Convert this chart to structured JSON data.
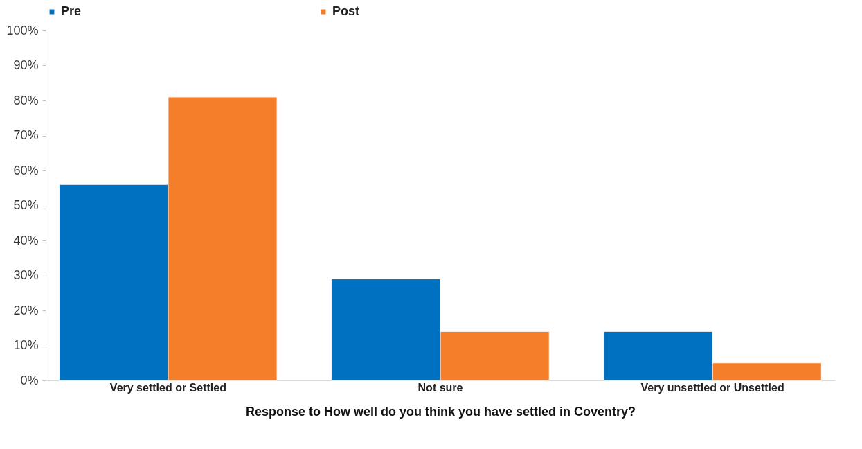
{
  "chart_data": {
    "type": "bar",
    "xlabel": "Response to How well do you think you have settled in Coventry?",
    "categories": [
      "Very settled or Settled",
      "Not sure",
      "Very unsettled or Unsettled"
    ],
    "series": [
      {
        "name": "Pre",
        "color": "#0070c0",
        "values": [
          56,
          29,
          14
        ]
      },
      {
        "name": "Post",
        "color": "#f47e2a",
        "values": [
          81,
          14,
          5
        ]
      }
    ],
    "ylim": [
      0,
      100
    ],
    "yticks": [
      {
        "value": 0,
        "label": "0%"
      },
      {
        "value": 10,
        "label": "10%"
      },
      {
        "value": 20,
        "label": "20%"
      },
      {
        "value": 30,
        "label": "30%"
      },
      {
        "value": 40,
        "label": "40%"
      },
      {
        "value": 50,
        "label": "50%"
      },
      {
        "value": 60,
        "label": "60%"
      },
      {
        "value": 70,
        "label": "70%"
      },
      {
        "value": 80,
        "label": "80%"
      },
      {
        "value": 90,
        "label": "90%"
      },
      {
        "value": 100,
        "label": "100%"
      }
    ],
    "grid": false,
    "legend": "top"
  }
}
